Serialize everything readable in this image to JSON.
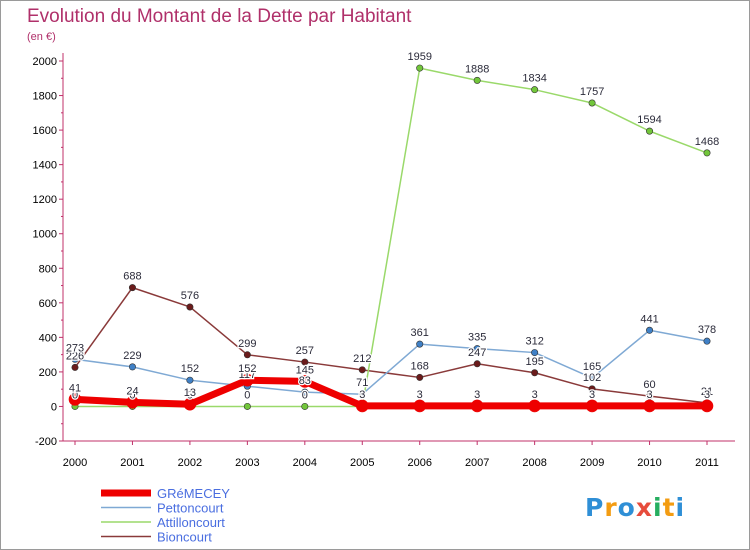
{
  "header": {
    "title": "Evolution du Montant de la Dette par Habitant",
    "subtitle": "(en €)"
  },
  "logo": {
    "letters": [
      "P",
      "r",
      "o",
      "x",
      "i",
      "t",
      "i"
    ],
    "colors": [
      "#2f8fd6",
      "#f39c12",
      "#2f8fd6",
      "#e74c3c",
      "#27ae60",
      "#f39c12",
      "#2f8fd6"
    ]
  },
  "chart_data": {
    "type": "line",
    "title": "Evolution du Montant de la Dette par Habitant",
    "subtitle": "(en €)",
    "xlabel": "",
    "ylabel": "",
    "x": [
      "2000",
      "2001",
      "2002",
      "2003",
      "2004",
      "2005",
      "2006",
      "2007",
      "2008",
      "2009",
      "2010",
      "2011"
    ],
    "ylim": [
      -200,
      2000
    ],
    "yticks": [
      -200,
      0,
      200,
      400,
      600,
      800,
      1000,
      1200,
      1400,
      1600,
      1800,
      2000
    ],
    "grid": false,
    "legend_position": "bottom-left",
    "series": [
      {
        "name": "GRéMECEY",
        "color": "#ee0000",
        "dot": "#ee0000",
        "width": 7,
        "values": [
          41,
          24,
          13,
          152,
          145,
          3,
          3,
          3,
          3,
          3,
          3,
          3
        ],
        "labels": [
          "41",
          "24",
          "13",
          "152",
          "145",
          "3",
          "3",
          "3",
          "3",
          "3",
          "3",
          "3"
        ]
      },
      {
        "name": "Pettoncourt",
        "color": "#7fa9d4",
        "dot": "#3f80c6",
        "width": 1.5,
        "values": [
          273,
          229,
          152,
          117,
          83,
          71,
          361,
          335,
          312,
          165,
          441,
          378
        ],
        "labels": [
          "273",
          "229",
          "152",
          "117",
          "83",
          "71",
          "361",
          "335",
          "312",
          "165",
          "441",
          "378"
        ]
      },
      {
        "name": "Attilloncourt",
        "color": "#9ad96a",
        "dot": "#72c63a",
        "width": 1.5,
        "values": [
          0,
          0,
          0,
          0,
          0,
          0,
          1959,
          1888,
          1834,
          1757,
          1594,
          1468
        ],
        "labels": [
          "0",
          "0",
          "0",
          "0",
          "0",
          "0",
          "1959",
          "1888",
          "1834",
          "1757",
          "1594",
          "1468"
        ]
      },
      {
        "name": "Bioncourt",
        "color": "#8a3a3a",
        "dot": "#6b1b1b",
        "width": 1.5,
        "values": [
          226,
          688,
          576,
          299,
          257,
          212,
          168,
          247,
          195,
          102,
          60,
          21
        ],
        "labels": [
          "226",
          "688",
          "576",
          "299",
          "257",
          "212",
          "168",
          "247",
          "195",
          "102",
          "60",
          "21"
        ]
      }
    ]
  }
}
